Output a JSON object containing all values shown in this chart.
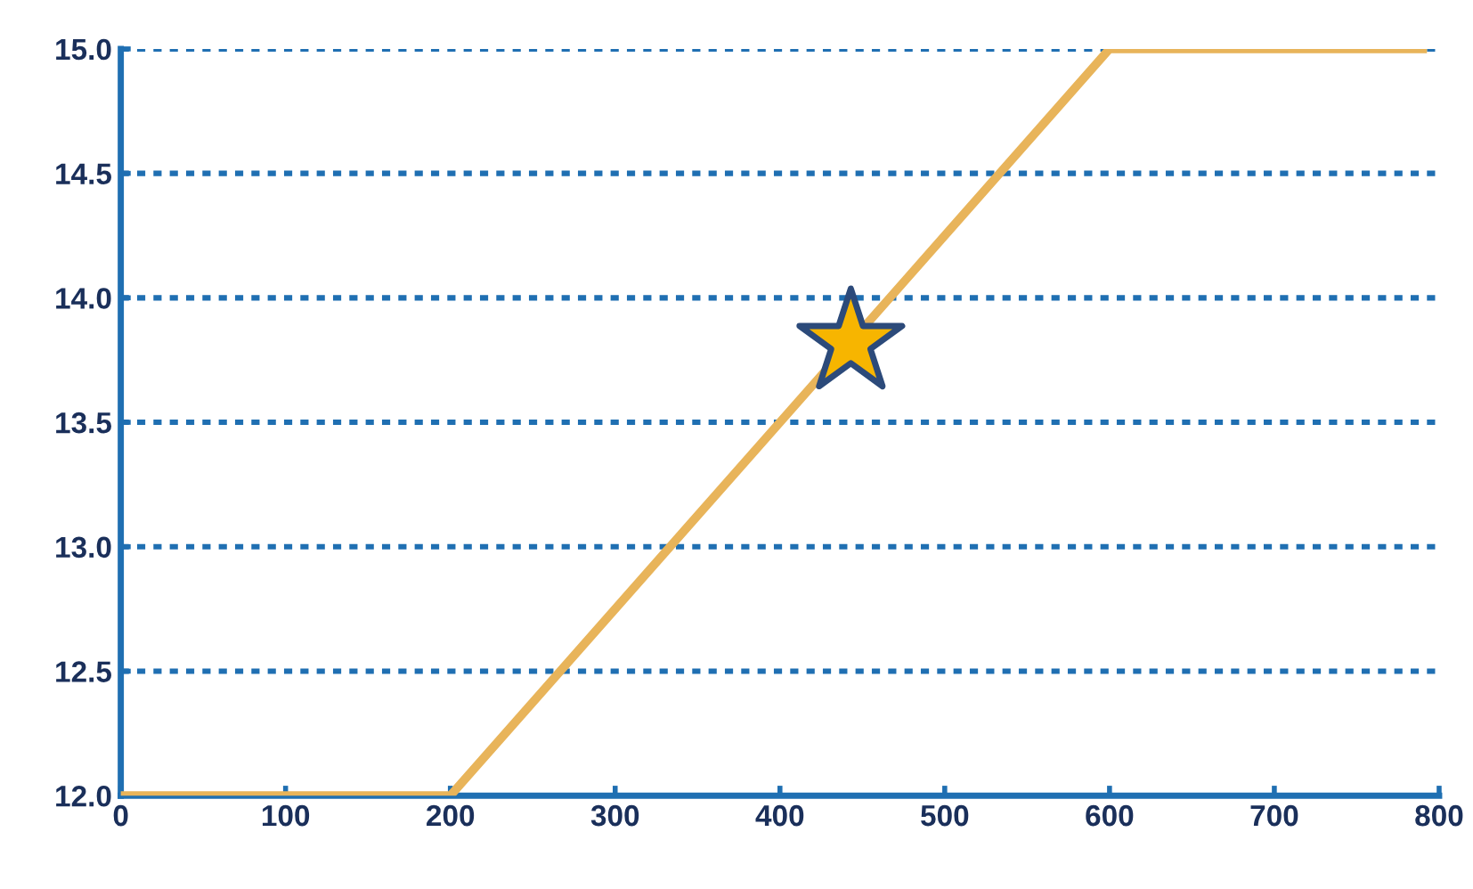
{
  "chart_data": {
    "type": "line",
    "series": [
      {
        "color": "#e8b45a",
        "x": [
          0,
          200,
          600,
          790
        ],
        "values": [
          12.0,
          12.0,
          15.0,
          15.0
        ],
        "marker": "none",
        "line_style": "solid"
      },
      {
        "type": "scatter",
        "color": "#f7b500",
        "x": [
          443
        ],
        "values": [
          13.82
        ],
        "marker": "star"
      }
    ],
    "xlim": [
      0,
      800
    ],
    "xticks": [
      0,
      100,
      200,
      300,
      400,
      500,
      600,
      700,
      800
    ],
    "ylim": [
      12.0,
      15.0
    ],
    "yticks": [
      {
        "value": 12.0,
        "label": "12.0"
      },
      {
        "value": 12.5,
        "label": "12.5"
      },
      {
        "value": 13.0,
        "label": "13.0"
      },
      {
        "value": 13.5,
        "label": "13.5"
      },
      {
        "value": 14.0,
        "label": "14.0"
      },
      {
        "value": 14.5,
        "label": "14.5"
      },
      {
        "value": 15.0,
        "label": "15.0"
      }
    ],
    "grid": "y",
    "legend": false
  }
}
